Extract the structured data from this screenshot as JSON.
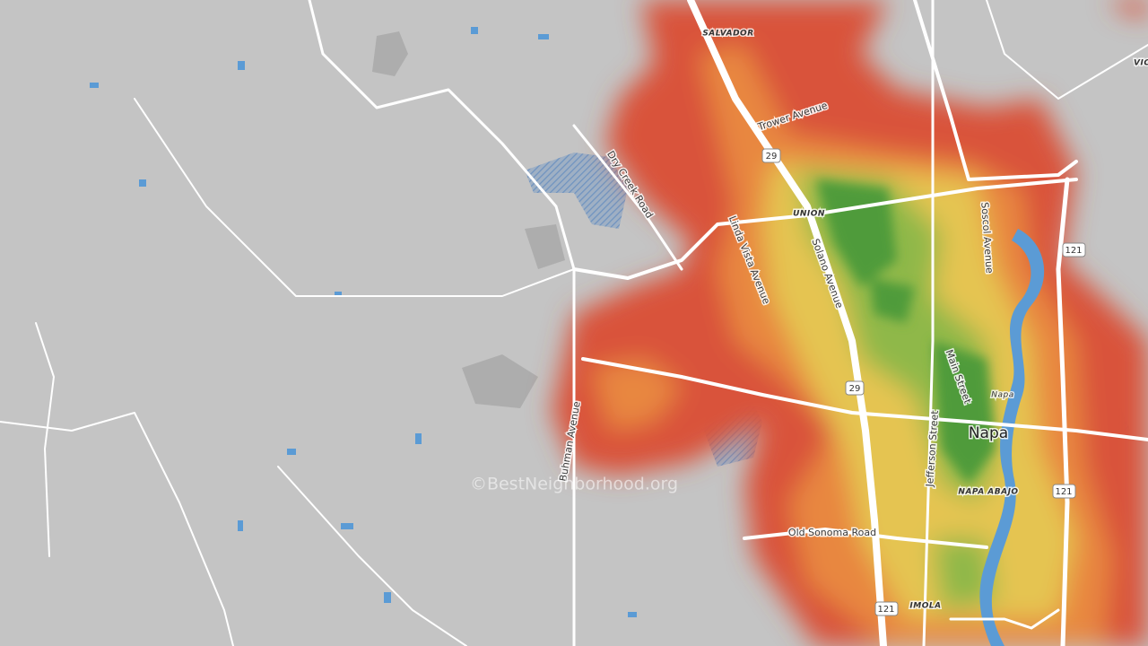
{
  "neighborhoods": [
    "SALVADOR",
    "UNION",
    "NAPA ABAJO",
    "IMOLA",
    "Napa",
    "VIC"
  ],
  "streets": [
    "Trower Avenue",
    "Dry Creek Road",
    "Linda Vista Avenue",
    "Solano Avenue",
    "Soscol Avenue",
    "Main Street",
    "Jefferson Street",
    "Old Sonoma Road",
    "Buhman Avenue"
  ],
  "route_shields": [
    "29",
    "29",
    "121",
    "121",
    "121"
  ],
  "city": "Napa",
  "watermark": "©BestNeighborhood.org"
}
